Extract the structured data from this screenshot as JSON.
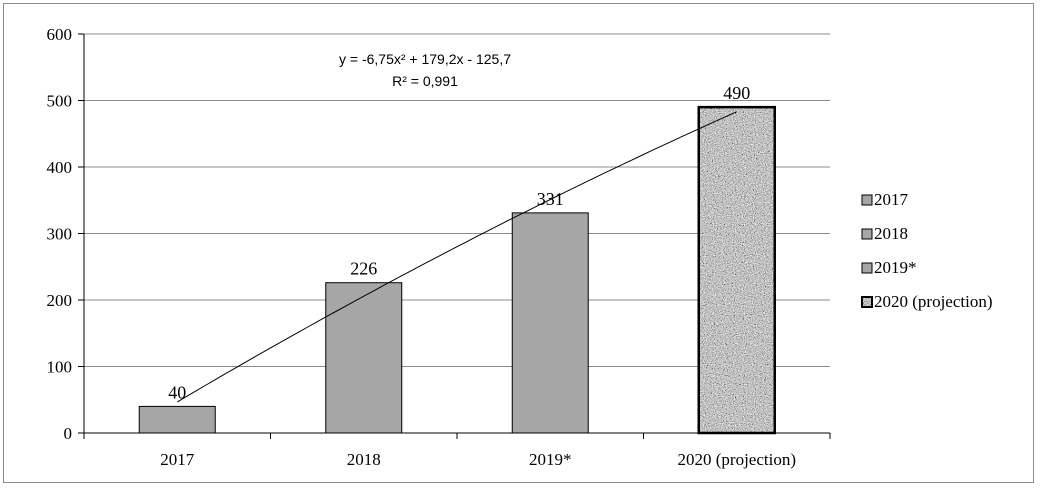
{
  "chart_data": {
    "type": "bar",
    "categories": [
      "2017",
      "2018",
      "2019*",
      "2020 (projection)"
    ],
    "values": [
      40,
      226,
      331,
      490
    ],
    "data_labels": [
      "40",
      "226",
      "331",
      "490"
    ],
    "ylim": [
      0,
      600
    ],
    "yticks": [
      0,
      100,
      200,
      300,
      400,
      500,
      600
    ],
    "ytick_labels": [
      "0",
      "100",
      "200",
      "300",
      "400",
      "500",
      "600"
    ],
    "grid": true,
    "legend": {
      "placement": "right",
      "entries": [
        "2017",
        "2018",
        "2019*",
        "2020 (projection)"
      ]
    },
    "trendline": {
      "type": "polynomial",
      "equation": "y = -6,75x² + 179,2x - 125,7",
      "r_squared": "R² = 0,991"
    },
    "colors": {
      "bar": "#a6a6a6",
      "projection_base": "#9a9a9a",
      "gridline": "#8c8c8c"
    }
  }
}
